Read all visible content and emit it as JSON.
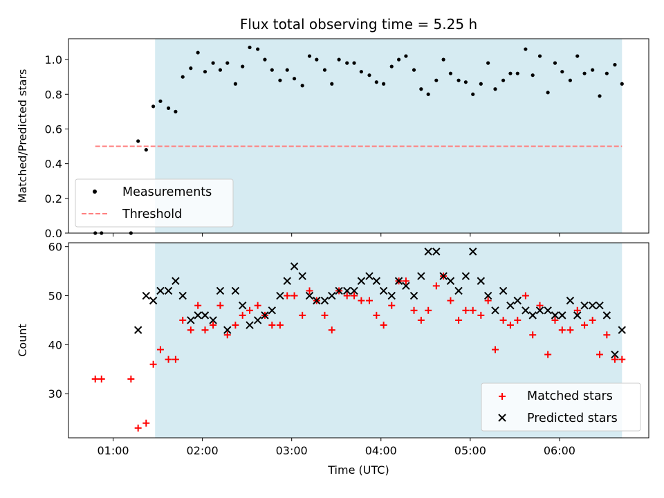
{
  "chart_data": [
    {
      "type": "scatter",
      "title": "Flux total observing time = 5.25 h",
      "xlabel": "",
      "ylabel": "Matched/Predicted stars",
      "ylim": [
        0,
        1.12
      ],
      "yticks": [
        0.0,
        0.2,
        0.4,
        0.6,
        0.8,
        1.0
      ],
      "ytick_labels": [
        "0.0",
        "0.2",
        "0.4",
        "0.6",
        "0.8",
        "1.0"
      ],
      "x_unit": "hours_utc",
      "xlim": [
        0.5,
        7.0
      ],
      "xticks": [
        1,
        2,
        3,
        4,
        5,
        6
      ],
      "observing_window": [
        1.47,
        6.7
      ],
      "window_color": "#add8e6",
      "legend_position": "lower left",
      "series": [
        {
          "name": "Measurements",
          "marker": "dot",
          "color": "#000000",
          "x": [
            0.8,
            0.87,
            1.2,
            1.28,
            1.37,
            1.45,
            1.53,
            1.62,
            1.7,
            1.78,
            1.87,
            1.95,
            2.03,
            2.12,
            2.2,
            2.28,
            2.37,
            2.45,
            2.53,
            2.62,
            2.7,
            2.78,
            2.87,
            2.95,
            3.03,
            3.12,
            3.2,
            3.28,
            3.37,
            3.45,
            3.53,
            3.62,
            3.7,
            3.78,
            3.87,
            3.95,
            4.03,
            4.12,
            4.2,
            4.28,
            4.37,
            4.45,
            4.53,
            4.62,
            4.7,
            4.78,
            4.87,
            4.95,
            5.03,
            5.12,
            5.2,
            5.28,
            5.37,
            5.45,
            5.53,
            5.62,
            5.7,
            5.78,
            5.87,
            5.95,
            6.03,
            6.12,
            6.2,
            6.28,
            6.37,
            6.45,
            6.53,
            6.62,
            6.7
          ],
          "y": [
            0.0,
            0.0,
            0.0,
            0.53,
            0.48,
            0.73,
            0.76,
            0.72,
            0.7,
            0.9,
            0.95,
            1.04,
            0.93,
            0.98,
            0.94,
            0.98,
            0.86,
            0.96,
            1.07,
            1.06,
            1.0,
            0.94,
            0.88,
            0.94,
            0.89,
            0.85,
            1.02,
            1.0,
            0.94,
            0.86,
            1.0,
            0.98,
            0.98,
            0.93,
            0.91,
            0.87,
            0.86,
            0.96,
            1.0,
            1.02,
            0.94,
            0.83,
            0.8,
            0.88,
            1.0,
            0.92,
            0.88,
            0.87,
            0.8,
            0.86,
            0.98,
            0.83,
            0.88,
            0.92,
            0.92,
            1.06,
            0.91,
            1.02,
            0.81,
            0.98,
            0.93,
            0.88,
            1.02,
            0.92,
            0.94,
            0.79,
            0.92,
            0.97,
            0.86
          ]
        },
        {
          "name": "Threshold",
          "marker": "dashed-line",
          "color": "#ff7f7f",
          "x": [
            0.8,
            6.7
          ],
          "y": [
            0.5,
            0.5
          ]
        }
      ]
    },
    {
      "type": "scatter",
      "title": "",
      "xlabel": "Time (UTC)",
      "ylabel": "Count",
      "ylim": [
        21,
        60.8
      ],
      "yticks": [
        30,
        40,
        50,
        60
      ],
      "ytick_labels": [
        "30",
        "40",
        "50",
        "60"
      ],
      "x_unit": "hours_utc",
      "xlim": [
        0.5,
        7.0
      ],
      "xticks": [
        1,
        2,
        3,
        4,
        5,
        6
      ],
      "xtick_labels": [
        "01:00",
        "02:00",
        "03:00",
        "04:00",
        "05:00",
        "06:00"
      ],
      "observing_window": [
        1.47,
        6.7
      ],
      "window_color": "#add8e6",
      "legend_position": "lower right",
      "series": [
        {
          "name": "Matched stars",
          "marker": "plus",
          "color": "#ff0000",
          "x": [
            0.8,
            0.87,
            1.2,
            1.28,
            1.37,
            1.45,
            1.53,
            1.62,
            1.7,
            1.78,
            1.87,
            1.95,
            2.03,
            2.12,
            2.2,
            2.28,
            2.37,
            2.45,
            2.53,
            2.62,
            2.7,
            2.78,
            2.87,
            2.95,
            3.03,
            3.12,
            3.2,
            3.28,
            3.37,
            3.45,
            3.53,
            3.62,
            3.7,
            3.78,
            3.87,
            3.95,
            4.03,
            4.12,
            4.2,
            4.28,
            4.37,
            4.45,
            4.53,
            4.62,
            4.7,
            4.78,
            4.87,
            4.95,
            5.03,
            5.12,
            5.2,
            5.28,
            5.37,
            5.45,
            5.53,
            5.62,
            5.7,
            5.78,
            5.87,
            5.95,
            6.03,
            6.12,
            6.2,
            6.28,
            6.37,
            6.45,
            6.53,
            6.62,
            6.7
          ],
          "y": [
            33,
            33,
            33,
            23,
            24,
            36,
            39,
            37,
            37,
            45,
            43,
            48,
            43,
            44,
            48,
            42,
            44,
            46,
            47,
            48,
            46,
            44,
            44,
            50,
            50,
            46,
            51,
            49,
            46,
            43,
            51,
            50,
            50,
            49,
            49,
            46,
            44,
            48,
            53,
            53,
            47,
            45,
            47,
            52,
            54,
            49,
            45,
            47,
            47,
            46,
            49,
            39,
            45,
            44,
            45,
            50,
            42,
            48,
            38,
            45,
            43,
            43,
            47,
            44,
            45,
            38,
            42,
            37,
            37
          ]
        },
        {
          "name": "Predicted stars",
          "marker": "x",
          "color": "#000000",
          "x": [
            1.28,
            1.37,
            1.45,
            1.53,
            1.62,
            1.7,
            1.78,
            1.87,
            1.95,
            2.03,
            2.12,
            2.2,
            2.28,
            2.37,
            2.45,
            2.53,
            2.62,
            2.7,
            2.78,
            2.87,
            2.95,
            3.03,
            3.12,
            3.2,
            3.28,
            3.37,
            3.45,
            3.53,
            3.62,
            3.7,
            3.78,
            3.87,
            3.95,
            4.03,
            4.12,
            4.2,
            4.28,
            4.37,
            4.45,
            4.53,
            4.62,
            4.7,
            4.78,
            4.87,
            4.95,
            5.03,
            5.12,
            5.2,
            5.28,
            5.37,
            5.45,
            5.53,
            5.62,
            5.7,
            5.78,
            5.87,
            5.95,
            6.03,
            6.12,
            6.2,
            6.28,
            6.37,
            6.45,
            6.53,
            6.62,
            6.7
          ],
          "y": [
            43,
            50,
            49,
            51,
            51,
            53,
            50,
            45,
            46,
            46,
            45,
            51,
            43,
            51,
            48,
            44,
            45,
            46,
            47,
            50,
            53,
            56,
            54,
            50,
            49,
            49,
            50,
            51,
            51,
            51,
            53,
            54,
            53,
            51,
            50,
            53,
            52,
            50,
            54,
            59,
            59,
            54,
            53,
            51,
            54,
            59,
            53,
            50,
            47,
            51,
            48,
            49,
            47,
            46,
            47,
            47,
            46,
            46,
            49,
            46,
            48,
            48,
            48,
            46,
            38,
            43
          ]
        }
      ]
    }
  ]
}
